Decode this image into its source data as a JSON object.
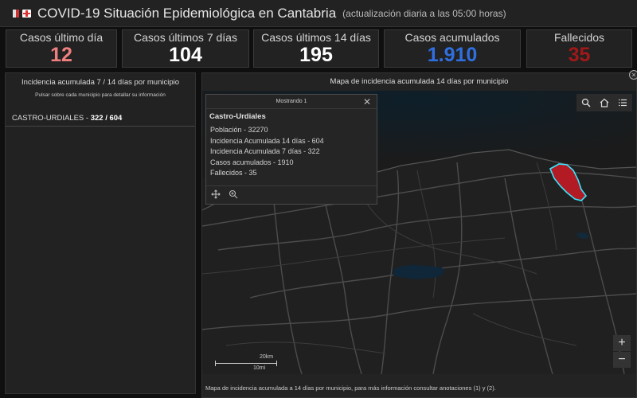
{
  "header": {
    "title": "COVID-19 Situación Epidemiológica en Cantabria",
    "subtitle": "(actualización diaria a las 05:00 horas)"
  },
  "kpis": [
    {
      "label": "Casos último día",
      "value": "12",
      "color": "#f08080"
    },
    {
      "label": "Casos últimos 7 días",
      "value": "104",
      "color": "#ffffff"
    },
    {
      "label": "Casos últimos 14 días",
      "value": "195",
      "color": "#ffffff"
    },
    {
      "label": "Casos acumulados",
      "value": "1.910",
      "color": "#2f6fe0"
    },
    {
      "label": "Fallecidos",
      "value": "35",
      "color": "#a01818"
    }
  ],
  "left_panel": {
    "title": "Incidencia acumulada 7 / 14 días por municipio",
    "hint": "Pulsar sobre cada municipio para detallar su información",
    "rows": [
      {
        "name": "CASTRO-URDIALES",
        "sep": " - ",
        "values": "322 / 604"
      }
    ]
  },
  "map": {
    "title": "Mapa de incidencia acumulada 14 días por municipio",
    "footer": "Mapa de incidencia acumulada a 14 días por municipio, para más información consultar anotaciones (1) y (2).",
    "highlight_color": "#b31b24",
    "highlight_outline": "#38e6ff",
    "scale": {
      "km": "20km",
      "mi": "10mi"
    },
    "zoom": {
      "in": "+",
      "out": "−"
    },
    "tools": [
      "search-icon",
      "home-icon",
      "legend-list-icon"
    ]
  },
  "popup": {
    "header": "Mostrando 1",
    "close": "✕",
    "name": "Castro-Urdiales",
    "lines": [
      "Población - 32270",
      "Incidencia Acumulada 14 días - 604",
      "Incidencia Acumulada 7 días - 322",
      "Casos acumulados - 1910",
      "Fallecidos - 35"
    ]
  }
}
